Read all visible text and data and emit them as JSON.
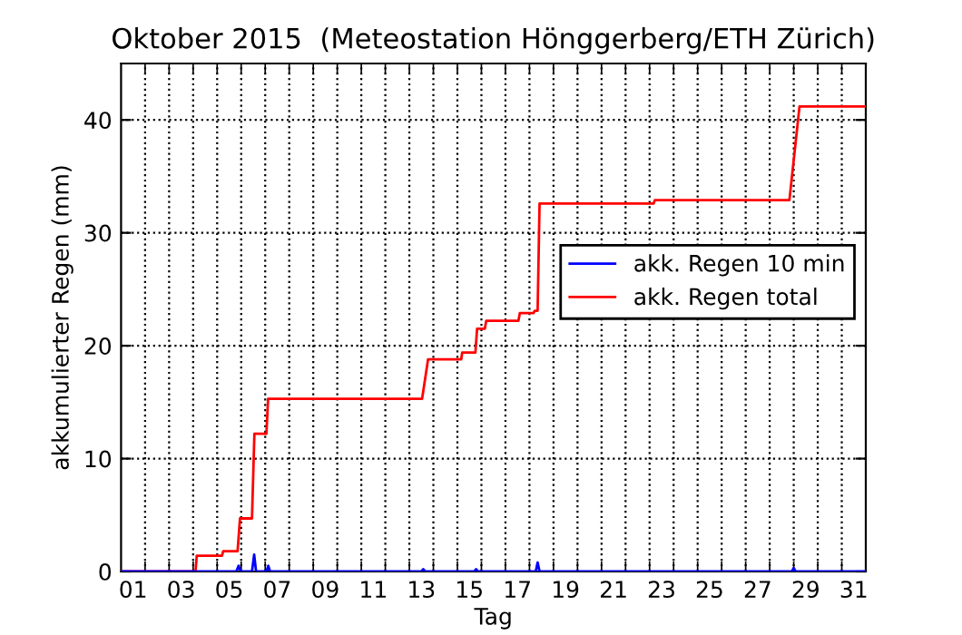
{
  "chart_data": {
    "type": "line",
    "title": "Oktober 2015  (Meteostation Hönggerberg/ETH Zürich)",
    "xlabel": "Tag",
    "ylabel": "akkumulierter Regen (mm)",
    "series": [
      {
        "name": "akk. Regen 10 min",
        "color": "#0000ff",
        "x": [
          1,
          5.8,
          5.89,
          5.98,
          6.45,
          6.54,
          6.62,
          7.05,
          7.13,
          7.2,
          13.5,
          13.58,
          13.66,
          15.7,
          15.78,
          15.86,
          18.26,
          18.34,
          18.42,
          28.92,
          29.0,
          29.08,
          32
        ],
        "values": [
          0,
          0,
          0.5,
          0,
          0,
          1.5,
          0,
          0,
          0.5,
          0,
          0,
          0.2,
          0,
          0,
          0.2,
          0,
          0,
          0.8,
          0,
          0,
          0.3,
          0,
          0
        ]
      },
      {
        "name": "akk. Regen total",
        "color": "#ff0000",
        "x": [
          1,
          4.1,
          4.15,
          5.2,
          5.25,
          5.85,
          5.95,
          6.45,
          6.55,
          7.05,
          7.12,
          13.53,
          13.78,
          15.16,
          15.2,
          15.75,
          15.82,
          16.14,
          16.2,
          17.54,
          17.6,
          18.17,
          18.22,
          18.34,
          18.42,
          23.17,
          23.22,
          28.82,
          29.24,
          32
        ],
        "values": [
          0,
          0,
          1.4,
          1.4,
          1.8,
          1.8,
          4.7,
          4.7,
          12.2,
          12.2,
          15.3,
          15.3,
          18.8,
          18.8,
          19.4,
          19.4,
          21.5,
          21.5,
          22.2,
          22.2,
          22.9,
          22.9,
          23.1,
          23.1,
          32.6,
          32.6,
          32.9,
          32.9,
          41.2,
          41.2
        ]
      }
    ],
    "xlim": [
      1,
      32
    ],
    "ylim": [
      0,
      45
    ],
    "xticks": [
      {
        "value": 1.5,
        "label": "01"
      },
      {
        "value": 3.5,
        "label": "03"
      },
      {
        "value": 5.5,
        "label": "05"
      },
      {
        "value": 7.5,
        "label": "07"
      },
      {
        "value": 9.5,
        "label": "09"
      },
      {
        "value": 11.5,
        "label": "11"
      },
      {
        "value": 13.5,
        "label": "13"
      },
      {
        "value": 15.5,
        "label": "15"
      },
      {
        "value": 17.5,
        "label": "17"
      },
      {
        "value": 19.5,
        "label": "19"
      },
      {
        "value": 21.5,
        "label": "21"
      },
      {
        "value": 23.5,
        "label": "23"
      },
      {
        "value": 25.5,
        "label": "25"
      },
      {
        "value": 27.5,
        "label": "27"
      },
      {
        "value": 29.5,
        "label": "29"
      },
      {
        "value": 31.5,
        "label": "31"
      },
      {
        "value": 2,
        "label": null
      },
      {
        "value": 3,
        "label": null
      },
      {
        "value": 4,
        "label": null
      },
      {
        "value": 5,
        "label": null
      },
      {
        "value": 6,
        "label": null
      },
      {
        "value": 7,
        "label": null
      },
      {
        "value": 8,
        "label": null
      },
      {
        "value": 9,
        "label": null
      },
      {
        "value": 10,
        "label": null
      },
      {
        "value": 11,
        "label": null
      },
      {
        "value": 12,
        "label": null
      },
      {
        "value": 13,
        "label": null
      },
      {
        "value": 14,
        "label": null
      },
      {
        "value": 15,
        "label": null
      },
      {
        "value": 16,
        "label": null
      },
      {
        "value": 17,
        "label": null
      },
      {
        "value": 18,
        "label": null
      },
      {
        "value": 19,
        "label": null
      },
      {
        "value": 20,
        "label": null
      },
      {
        "value": 21,
        "label": null
      },
      {
        "value": 22,
        "label": null
      },
      {
        "value": 23,
        "label": null
      },
      {
        "value": 24,
        "label": null
      },
      {
        "value": 25,
        "label": null
      },
      {
        "value": 26,
        "label": null
      },
      {
        "value": 27,
        "label": null
      },
      {
        "value": 28,
        "label": null
      },
      {
        "value": 29,
        "label": null
      },
      {
        "value": 30,
        "label": null
      },
      {
        "value": 31,
        "label": null
      }
    ],
    "yticks": [
      0,
      10,
      20,
      30,
      40
    ],
    "grid": true,
    "legend": "right",
    "line_style": "solid",
    "marker": "none"
  }
}
